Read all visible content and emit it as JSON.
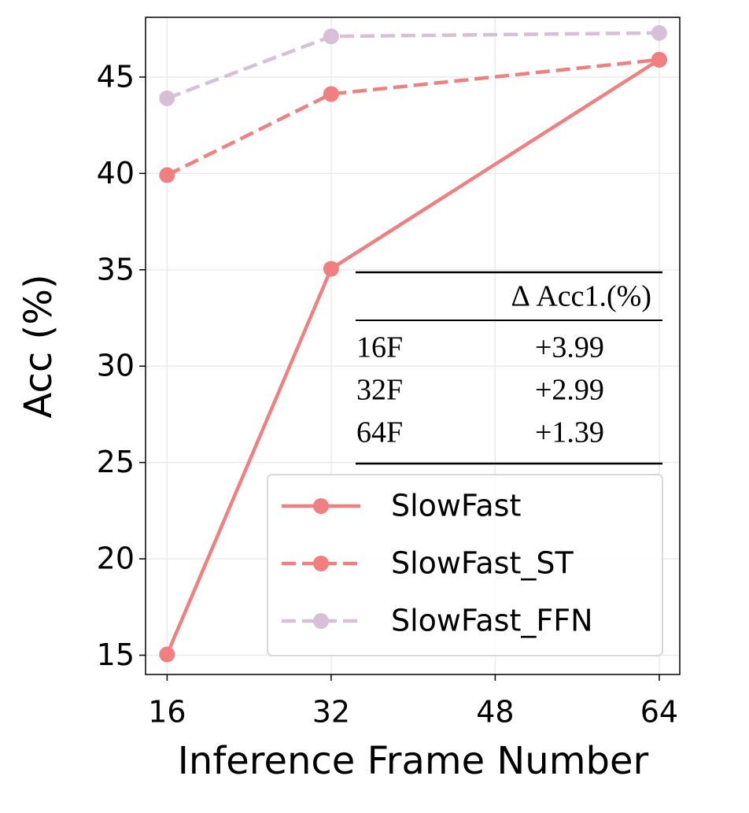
{
  "chart_data": {
    "type": "line",
    "x_label": "Inference Frame Number",
    "y_label": "Acc (%)",
    "x": [
      16,
      32,
      64
    ],
    "series": [
      {
        "name": "SlowFast",
        "color": "#f08080",
        "dashed": false,
        "values": [
          15.04,
          35.05,
          45.9
        ]
      },
      {
        "name": "SlowFast_ST",
        "color": "#f08080",
        "dashed": true,
        "values": [
          39.91,
          44.12,
          45.9
        ]
      },
      {
        "name": "SlowFast_FFN",
        "color": "#d8bfd8",
        "dashed": true,
        "values": [
          43.9,
          47.11,
          47.29
        ]
      }
    ],
    "xlim": [
      13.9,
      66.0
    ],
    "ylim": [
      14.0,
      48.1
    ],
    "xticks": [
      16,
      32,
      48,
      64
    ],
    "yticks": [
      15,
      20,
      25,
      30,
      35,
      40,
      45
    ],
    "grid": true,
    "legend": "lower right",
    "table": {
      "header": "Δ Acc1.(%)",
      "rows": [
        [
          "16F",
          "+3.99"
        ],
        [
          "32F",
          "+2.99"
        ],
        [
          "64F",
          "+1.39"
        ]
      ]
    }
  }
}
